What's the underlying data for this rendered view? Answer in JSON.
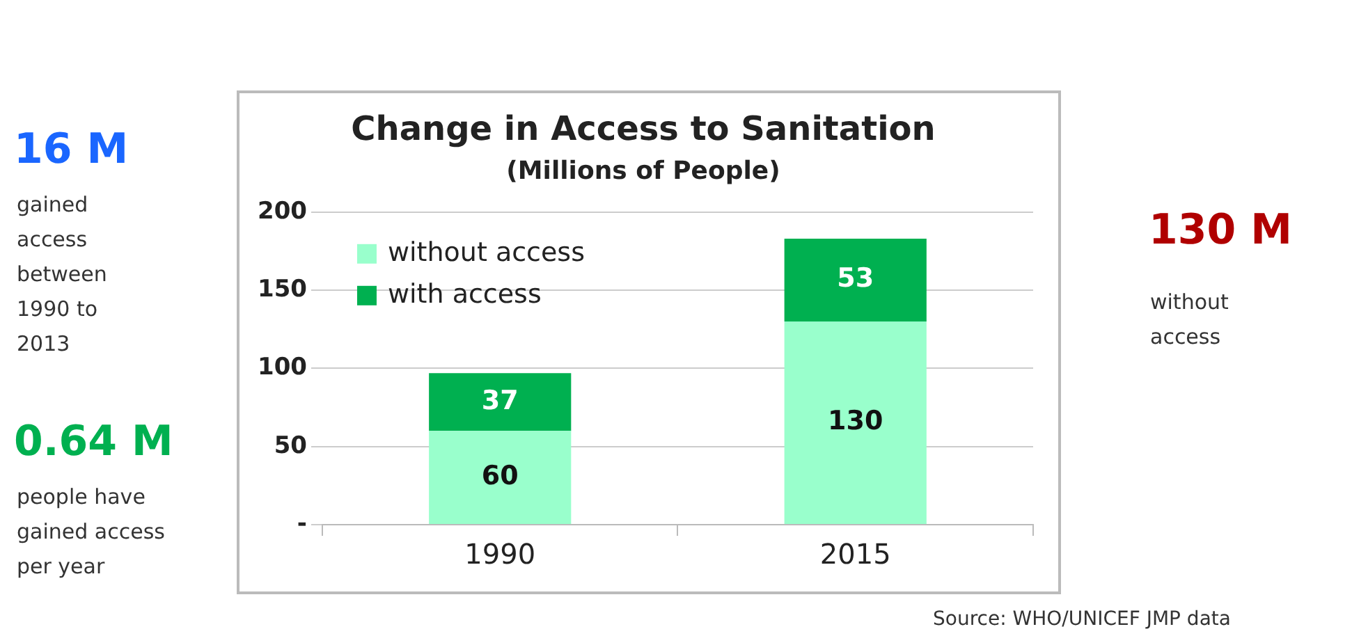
{
  "chart_data": {
    "type": "bar",
    "title": "Change in Access to Sanitation",
    "subtitle": "(Millions of People)",
    "categories": [
      "1990",
      "2015"
    ],
    "stacked": true,
    "series": [
      {
        "name": "without access",
        "color": "#99ffcc",
        "values": [
          60,
          130
        ]
      },
      {
        "name": "with access",
        "color": "#00b050",
        "values": [
          37,
          53
        ]
      }
    ],
    "ylim": [
      0,
      200
    ],
    "yticks": [
      {
        "value": 0,
        "label": "-"
      },
      50,
      100,
      150,
      200
    ],
    "grid": "y",
    "legend": "top left",
    "data_labels": true,
    "annotations": [
      "16 M",
      "gained access between 1990 to 2013",
      "0.64 M",
      "people have gained access per year",
      "130 M",
      "without access",
      "Source: WHO/UNICEF JMP data"
    ]
  }
}
